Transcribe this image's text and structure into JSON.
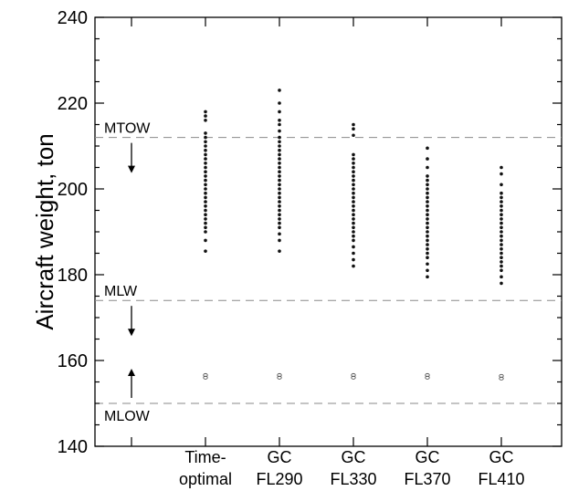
{
  "chart_data": {
    "type": "scatter",
    "title": "",
    "xlabel": "",
    "ylabel": "Aircraft weight, ton",
    "ylim": [
      140,
      240
    ],
    "yticks": [
      140,
      160,
      180,
      200,
      220,
      240
    ],
    "grid": false,
    "categories": [
      {
        "id": "time-optimal",
        "lines": [
          "Time-",
          "optimal"
        ]
      },
      {
        "id": "gc-fl290",
        "lines": [
          "GC",
          "FL290"
        ]
      },
      {
        "id": "gc-fl330",
        "lines": [
          "GC",
          "FL330"
        ]
      },
      {
        "id": "gc-fl370",
        "lines": [
          "GC",
          "FL370"
        ]
      },
      {
        "id": "gc-fl410",
        "lines": [
          "GC",
          "FL410"
        ]
      }
    ],
    "reference_lines": [
      {
        "label": "MTOW",
        "value": 212,
        "arrow": "down"
      },
      {
        "label": "MLW",
        "value": 174,
        "arrow": "down"
      },
      {
        "label": "MLOW",
        "value": 150,
        "arrow": "up"
      }
    ],
    "series": [
      {
        "marker": "filled",
        "points": [
          {
            "category": "time-optimal",
            "values": [
              185.5,
              188,
              190,
              191,
              192,
              193,
              194,
              195,
              196,
              197,
              198,
              199,
              200,
              201,
              202,
              203,
              204,
              205,
              206,
              207,
              208,
              209,
              210,
              211,
              212,
              213,
              216,
              217,
              218
            ]
          },
          {
            "category": "gc-fl290",
            "values": [
              185.5,
              188,
              189.5,
              191,
              192,
              193,
              194,
              195,
              196,
              197,
              198,
              199,
              200,
              201,
              202,
              203,
              204,
              205,
              206,
              207,
              208,
              209,
              210,
              211,
              212,
              213.5,
              215,
              216,
              218,
              220,
              223
            ]
          },
          {
            "category": "gc-fl330",
            "values": [
              182,
              183.5,
              185,
              186.5,
              188,
              189,
              190,
              191,
              192,
              193,
              194,
              195,
              196,
              197,
              198,
              199,
              200,
              201,
              202,
              203,
              204,
              205,
              206,
              207,
              208,
              212.5,
              214,
              215
            ]
          },
          {
            "category": "gc-fl370",
            "values": [
              179.5,
              181,
              182.5,
              184,
              185,
              186,
              187,
              188,
              189,
              190,
              191,
              192,
              193,
              194,
              195,
              196,
              197,
              198,
              199,
              200,
              201,
              202,
              203,
              205,
              207,
              209.5
            ]
          },
          {
            "category": "gc-fl410",
            "values": [
              178,
              179.5,
              181,
              182,
              183,
              184,
              185,
              186,
              187,
              188,
              189,
              190,
              191,
              192,
              193,
              194,
              195,
              196,
              197,
              198,
              199,
              201,
              203.5,
              205
            ]
          }
        ]
      },
      {
        "marker": "hollow",
        "points": [
          {
            "category": "time-optimal",
            "values": [
              156,
              156.6
            ]
          },
          {
            "category": "gc-fl290",
            "values": [
              156,
              156.6
            ]
          },
          {
            "category": "gc-fl330",
            "values": [
              156,
              156.6
            ]
          },
          {
            "category": "gc-fl370",
            "values": [
              156,
              156.6
            ]
          },
          {
            "category": "gc-fl410",
            "values": [
              155.8,
              156.4
            ]
          }
        ]
      }
    ]
  }
}
